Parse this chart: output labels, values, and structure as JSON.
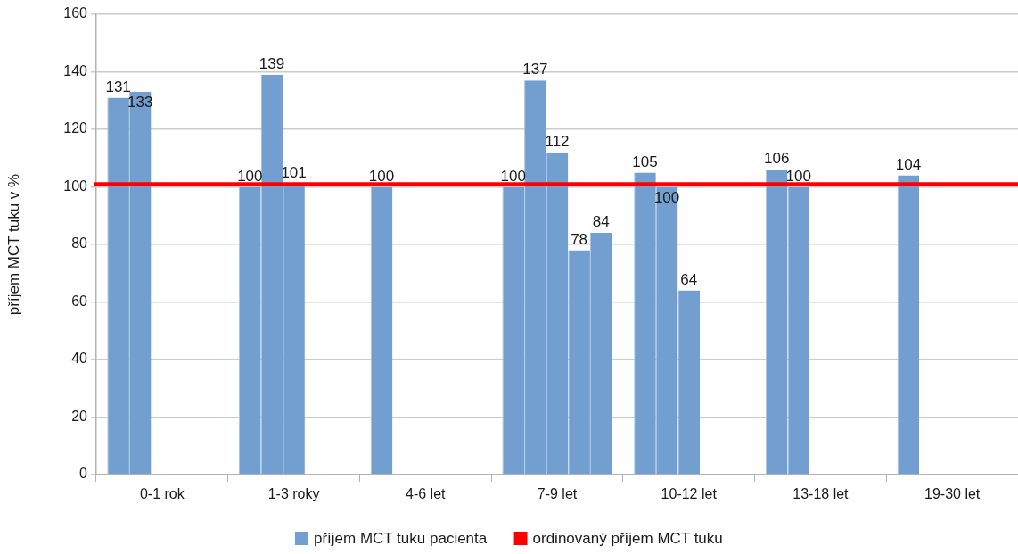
{
  "chart_data": {
    "type": "bar",
    "ylabel": "příjem MCT tuku v %",
    "categories": [
      "0-1 rok",
      "1-3 roky",
      "4-6 let",
      "7-9 let",
      "10-12 let",
      "13-18 let",
      "19-30 let"
    ],
    "series": [
      {
        "name": "příjem MCT tuku pacienta",
        "color": "#729fcf",
        "values": [
          131,
          100,
          100,
          100,
          105,
          106,
          104
        ]
      },
      {
        "color": "#729fcf",
        "values": [
          133,
          139,
          null,
          137,
          100,
          100,
          null
        ]
      },
      {
        "color": "#729fcf",
        "values": [
          null,
          101,
          null,
          112,
          64,
          null,
          null
        ]
      },
      {
        "color": "#729fcf",
        "values": [
          null,
          null,
          null,
          78,
          null,
          null,
          null
        ]
      },
      {
        "color": "#729fcf",
        "values": [
          null,
          null,
          null,
          84,
          null,
          null,
          null
        ]
      }
    ],
    "ylim": [
      0,
      160
    ],
    "yticks": [
      0,
      20,
      40,
      60,
      80,
      100,
      120,
      140,
      160
    ],
    "grid": "y",
    "legend": "bottom",
    "data_labels": true,
    "ref_lines": [
      {
        "axis": "y",
        "value": 101,
        "label": "ordinovaný příjem MCT tuku",
        "color": "#ff0000"
      }
    ]
  }
}
